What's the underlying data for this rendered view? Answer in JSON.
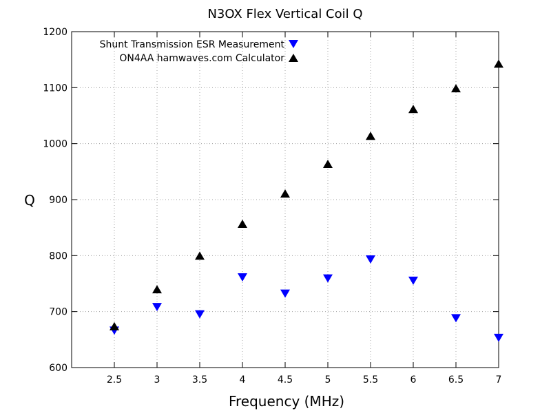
{
  "chart_data": {
    "type": "scatter",
    "title": "N3OX Flex Vertical Coil Q",
    "xlabel": "Frequency (MHz)",
    "ylabel": "Q",
    "xlim": [
      2.0,
      7.0
    ],
    "ylim": [
      600,
      1200
    ],
    "xticks": [
      2.5,
      3,
      3.5,
      4,
      4.5,
      5,
      5.5,
      6,
      6.5,
      7
    ],
    "yticks": [
      600,
      700,
      800,
      900,
      1000,
      1100,
      1200
    ],
    "grid": true,
    "legend_position": "top-left",
    "x": [
      2.5,
      3,
      3.5,
      4,
      4.5,
      5,
      5.5,
      6,
      6.5,
      7
    ],
    "series": [
      {
        "name": "Shunt Transmission ESR Measurement",
        "marker": "triangle-down",
        "color": "#0000ff",
        "values": [
          666,
          708,
          695,
          761,
          732,
          759,
          793,
          755,
          688,
          653
        ]
      },
      {
        "name": "ON4AA hamwaves.com Calculator",
        "marker": "triangle-up",
        "color": "#000000",
        "values": [
          674,
          740,
          800,
          857,
          911,
          964,
          1014,
          1062,
          1099,
          1143
        ]
      }
    ]
  }
}
